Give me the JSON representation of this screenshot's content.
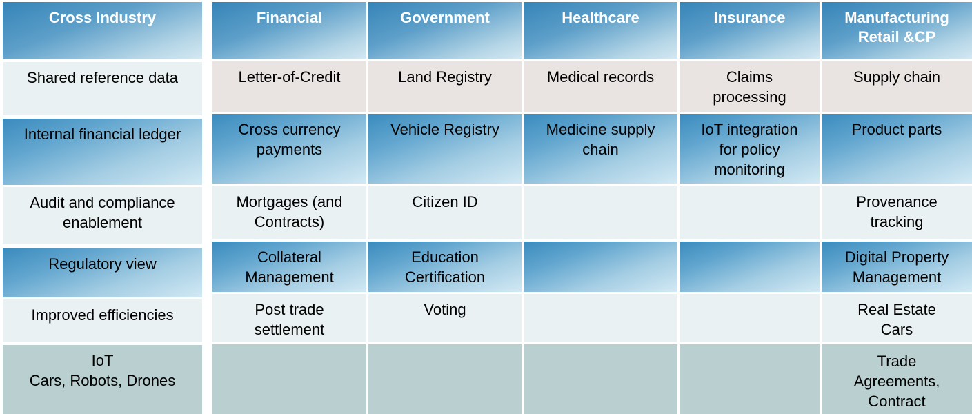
{
  "headers": [
    "Cross Industry",
    "Financial",
    "Government",
    "Healthcare",
    "Insurance",
    "Manufacturing\nRetail &CP"
  ],
  "cross_industry": [
    "Shared reference data",
    "Internal financial ledger",
    "Audit and compliance\nenablement",
    "Regulatory view",
    "Improved efficiencies",
    "IoT\nCars, Robots, Drones"
  ],
  "grid": [
    [
      "Letter-of-Credit",
      "Land Registry",
      "Medical records",
      "Claims\nprocessing",
      "Supply chain"
    ],
    [
      "Cross currency\npayments",
      "Vehicle Registry",
      "Medicine supply\nchain",
      "IoT integration\nfor policy\nmonitoring",
      "Product parts"
    ],
    [
      "Mortgages (and\nContracts)",
      "Citizen ID",
      "",
      "",
      "Provenance\ntracking"
    ],
    [
      "Collateral\nManagement",
      "Education\nCertification",
      "",
      "",
      "Digital Property\nManagement"
    ],
    [
      "Post trade\nsettlement",
      "Voting",
      "",
      "",
      "Real Estate\nCars"
    ],
    [
      "",
      "",
      "",
      "",
      "Trade\nAgreements,\nContract"
    ]
  ],
  "colors": {
    "header_text": "#ffffff",
    "light_cell": "#e9f1f2",
    "beige_cell": "#e9e4e1",
    "teal_cell": "#b9cfd0",
    "blue_start": "#3a8bbe"
  }
}
